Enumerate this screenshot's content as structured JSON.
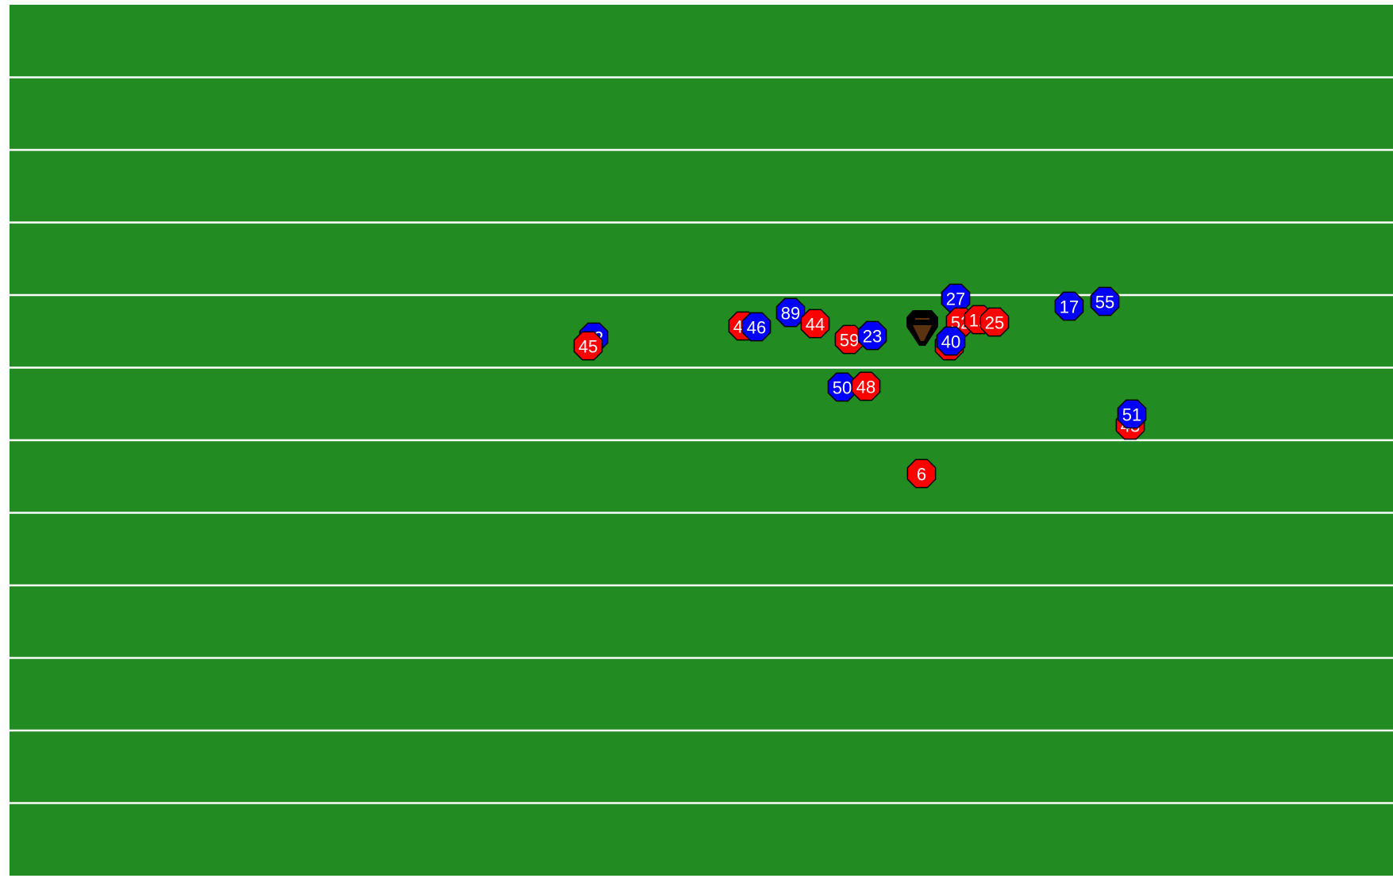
{
  "colors": {
    "field": "#228B22",
    "yard_line": "#ffffff",
    "team_red": "#ff0000",
    "team_blue": "#0000ff",
    "outline": "#000000",
    "ball": "#5c3310",
    "number_text": "#ffffff"
  },
  "field": {
    "yard_line_count": 11
  },
  "players": [
    {
      "team": "blue",
      "number": "42"
    },
    {
      "team": "red",
      "number": "45"
    },
    {
      "team": "red",
      "number": "47"
    },
    {
      "team": "blue",
      "number": "46"
    },
    {
      "team": "blue",
      "number": "89"
    },
    {
      "team": "red",
      "number": "44"
    },
    {
      "team": "red",
      "number": "59"
    },
    {
      "team": "blue",
      "number": "23"
    },
    {
      "team": "blue",
      "number": "27"
    },
    {
      "team": "red",
      "number": "52"
    },
    {
      "team": "red",
      "number": "12"
    },
    {
      "team": "red",
      "number": "25"
    },
    {
      "team": "red",
      "number": "32"
    },
    {
      "team": "blue",
      "number": "40"
    },
    {
      "team": "blue",
      "number": "17"
    },
    {
      "team": "blue",
      "number": "55"
    },
    {
      "team": "blue",
      "number": "50"
    },
    {
      "team": "red",
      "number": "48"
    },
    {
      "team": "red",
      "number": "43"
    },
    {
      "team": "blue",
      "number": "51"
    },
    {
      "team": "red",
      "number": "6"
    }
  ],
  "ball": {
    "icon": "football-icon"
  }
}
